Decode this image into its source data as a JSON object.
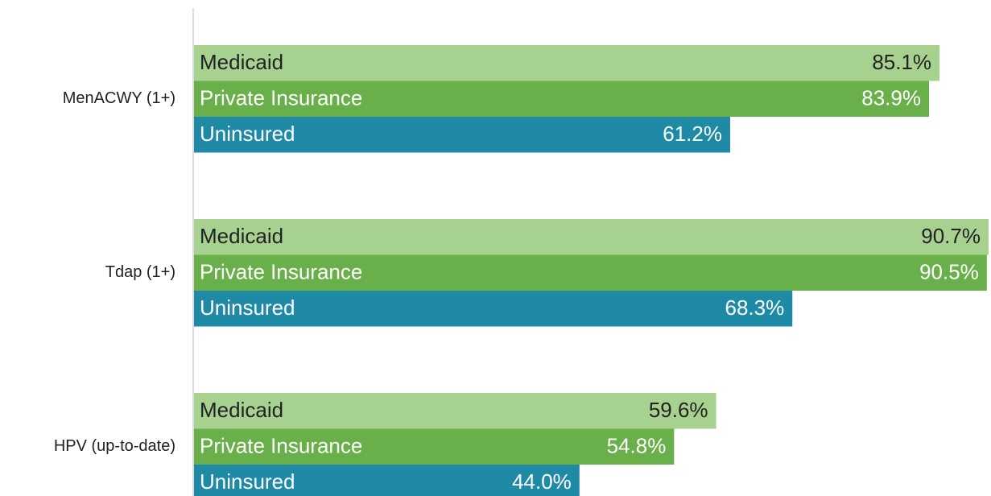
{
  "chart_data": {
    "type": "bar",
    "orientation": "horizontal",
    "categories": [
      "MenACWY (1+)",
      "Tdap (1+)",
      "HPV (up-to-date)"
    ],
    "series": [
      {
        "name": "Medicaid",
        "color": "#a7d18f",
        "text_color": "#222222",
        "values": [
          85.1,
          90.7,
          59.6
        ],
        "value_labels": [
          "85.1%",
          "90.7%",
          "59.6%"
        ]
      },
      {
        "name": "Private Insurance",
        "color": "#69b04a",
        "text_color": "#ffffff",
        "values": [
          83.9,
          90.5,
          54.8
        ],
        "value_labels": [
          "83.9%",
          "90.5%",
          "54.8%"
        ]
      },
      {
        "name": "Uninsured",
        "color": "#1f8aa6",
        "text_color": "#ffffff",
        "values": [
          61.2,
          68.3,
          44.0
        ],
        "value_labels": [
          "61.2%",
          "68.3%",
          "44.0%"
        ]
      }
    ]
  }
}
